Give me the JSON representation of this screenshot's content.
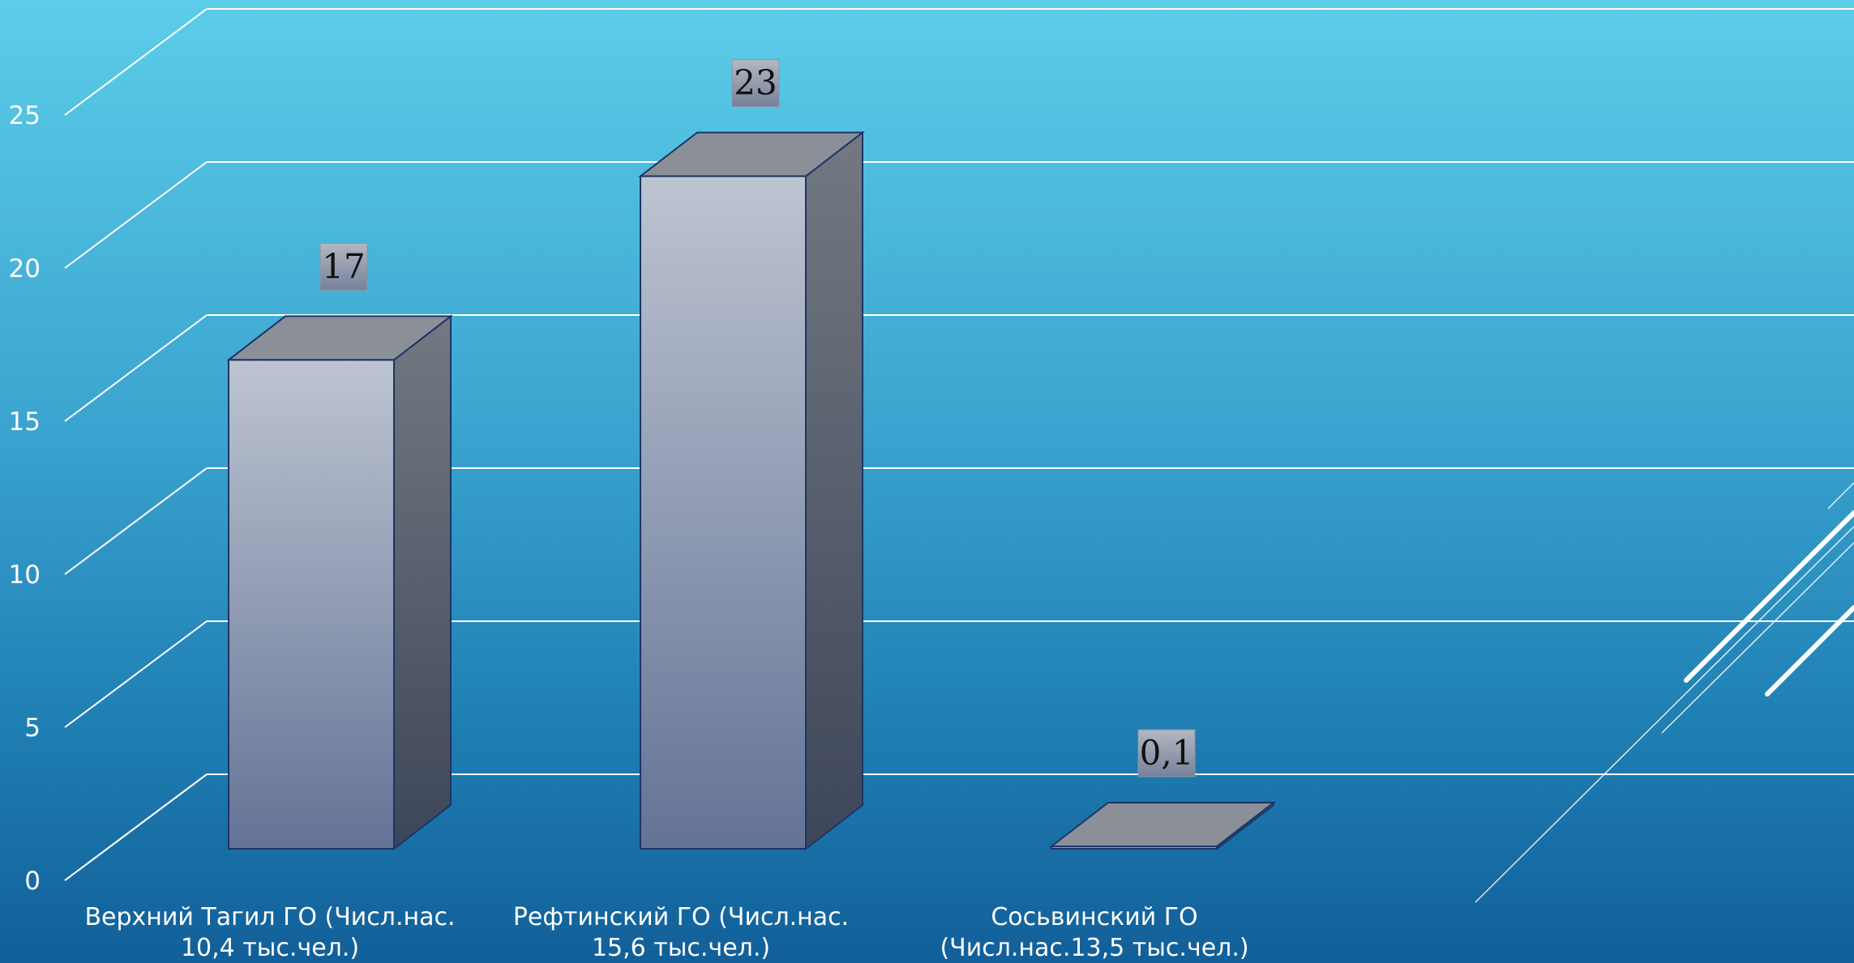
{
  "chart_data": {
    "type": "bar",
    "categories": [
      [
        "Верхний Тагил ГО (Числ.нас.",
        "10,4 тыс.чел.)"
      ],
      [
        "Рефтинский ГО (Числ.нас.",
        "15,6 тыс.чел.)"
      ],
      [
        "Сосьвинский ГО",
        "(Числ.нас.13,5 тыс.чел.)"
      ]
    ],
    "values": [
      17,
      23,
      0.1
    ],
    "data_labels": [
      "17",
      "23",
      "0,1"
    ],
    "y_ticks": [
      "0",
      "5",
      "10",
      "15",
      "20",
      "25"
    ],
    "ylim": [
      0,
      27.5
    ],
    "grid": true,
    "style": "3d-column",
    "colors": {
      "bar_front_top": "#bdc4d1",
      "bar_front_bottom": "#647396",
      "bar_side": "#414a5e",
      "bar_top": "#8b9098",
      "grid": "#ffffff"
    }
  }
}
